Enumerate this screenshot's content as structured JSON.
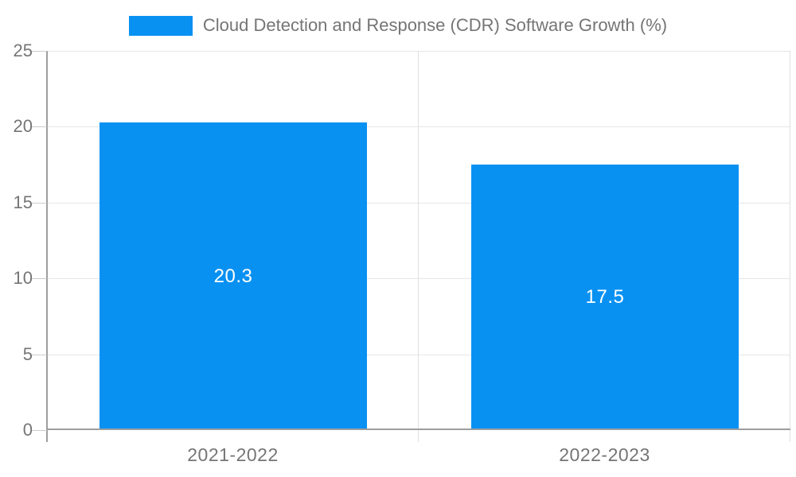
{
  "chart_data": {
    "type": "bar",
    "title": "Cloud Detection and Response (CDR) Software Growth (%)",
    "categories": [
      "2021-2022",
      "2022-2023"
    ],
    "values": [
      20.3,
      17.5
    ],
    "series": [
      {
        "name": "Cloud Detection and Response (CDR) Software Growth (%)",
        "values": [
          20.3,
          17.5
        ]
      }
    ],
    "xlabel": "",
    "ylabel": "",
    "ylim": [
      0,
      25
    ],
    "yticks": [
      0,
      5,
      10,
      15,
      20,
      25
    ],
    "grid": true,
    "legend_position": "top-center",
    "colors": {
      "bar": "#0991f2",
      "bar_value_label": "#ffffff",
      "axis_text": "#757575",
      "gridline": "#e6e6e6",
      "tick_dash": "#cccccc",
      "axis_line": "#9e9e9e",
      "divider_line": "#e0e0e0",
      "background": "#ffffff"
    }
  }
}
